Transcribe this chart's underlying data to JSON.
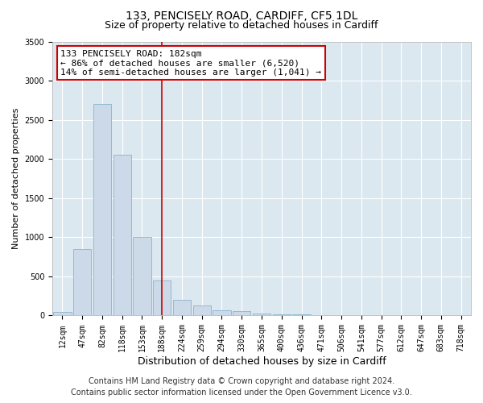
{
  "title": "133, PENCISELY ROAD, CARDIFF, CF5 1DL",
  "subtitle": "Size of property relative to detached houses in Cardiff",
  "xlabel": "Distribution of detached houses by size in Cardiff",
  "ylabel": "Number of detached properties",
  "bar_color": "#ccd9e8",
  "bar_edge_color": "#7aaac8",
  "bg_color": "#dce8f0",
  "grid_color": "#ffffff",
  "fig_bg_color": "#ffffff",
  "categories": [
    "12sqm",
    "47sqm",
    "82sqm",
    "118sqm",
    "153sqm",
    "188sqm",
    "224sqm",
    "259sqm",
    "294sqm",
    "330sqm",
    "365sqm",
    "400sqm",
    "436sqm",
    "471sqm",
    "506sqm",
    "541sqm",
    "577sqm",
    "612sqm",
    "647sqm",
    "683sqm",
    "718sqm"
  ],
  "values": [
    50,
    850,
    2700,
    2050,
    1000,
    450,
    200,
    130,
    65,
    60,
    30,
    20,
    15,
    10,
    5,
    5,
    4,
    3,
    2,
    2,
    1
  ],
  "vline_index": 5,
  "vline_color": "#cc0000",
  "ylim": [
    0,
    3500
  ],
  "yticks": [
    0,
    500,
    1000,
    1500,
    2000,
    2500,
    3000,
    3500
  ],
  "annotation_title": "133 PENCISELY ROAD: 182sqm",
  "annotation_line1": "← 86% of detached houses are smaller (6,520)",
  "annotation_line2": "14% of semi-detached houses are larger (1,041) →",
  "annotation_box_color": "#ffffff",
  "annotation_box_edge": "#cc0000",
  "footer1": "Contains HM Land Registry data © Crown copyright and database right 2024.",
  "footer2": "Contains public sector information licensed under the Open Government Licence v3.0.",
  "title_fontsize": 10,
  "subtitle_fontsize": 9,
  "ylabel_fontsize": 8,
  "xlabel_fontsize": 9,
  "tick_fontsize": 7,
  "annotation_fontsize": 8,
  "footer_fontsize": 7
}
